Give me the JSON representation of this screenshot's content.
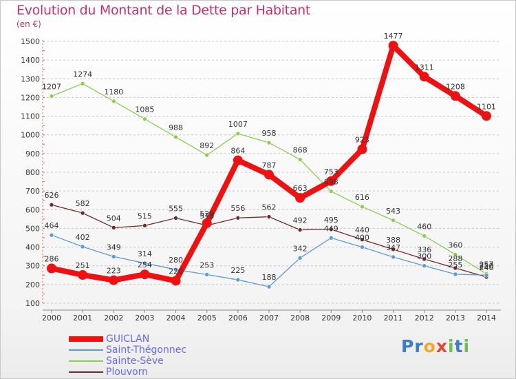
{
  "title": "Evolution du Montant de la Dette par Habitant",
  "unit": "(en €)",
  "logo": {
    "letters": [
      "P",
      "r",
      "o",
      "x",
      "i",
      "t",
      "i"
    ],
    "colors": [
      "#3b7bd0",
      "#3b7bd0",
      "#f5a623",
      "#e8452c",
      "#6cc04a",
      "#3b7bd0",
      "#6cc04a"
    ]
  },
  "chart_data": {
    "type": "line",
    "x": [
      "2000",
      "2001",
      "2002",
      "2003",
      "2004",
      "2005",
      "2006",
      "2007",
      "2008",
      "2009",
      "2010",
      "2011",
      "2012",
      "2013",
      "2014"
    ],
    "ylim": [
      100,
      1500
    ],
    "yticks": [
      100,
      200,
      300,
      400,
      500,
      600,
      700,
      800,
      900,
      1000,
      1100,
      1200,
      1300,
      1400,
      1500
    ],
    "grid": "horizontal dashed",
    "legend_position": "bottom-left",
    "series": [
      {
        "name": "Sainte-Sève",
        "color": "#8ccf4e",
        "values": [
          1207,
          1274,
          1180,
          1085,
          988,
          892,
          1007,
          958,
          868,
          698,
          616,
          543,
          460,
          360,
          257
        ]
      },
      {
        "name": "Plouvorn",
        "color": "#6e2a2a",
        "values": [
          626,
          582,
          504,
          515,
          555,
          516,
          556,
          562,
          492,
          495,
          440,
          388,
          336,
          288,
          240
        ]
      },
      {
        "name": "Saint-Thégonnec",
        "color": "#5b9bd5",
        "values": [
          464,
          402,
          349,
          314,
          280,
          253,
          225,
          188,
          342,
          449,
          400,
          347,
          300,
          255,
          250
        ]
      },
      {
        "name": "GUICLAN",
        "color": "#ee1111",
        "values": [
          286,
          251,
          223,
          254,
          220,
          528,
          864,
          787,
          663,
          753,
          923,
          1477,
          1311,
          1208,
          1101
        ]
      }
    ],
    "legend_order": [
      "GUICLAN",
      "Saint-Thégonnec",
      "Sainte-Sève",
      "Plouvorn"
    ]
  }
}
